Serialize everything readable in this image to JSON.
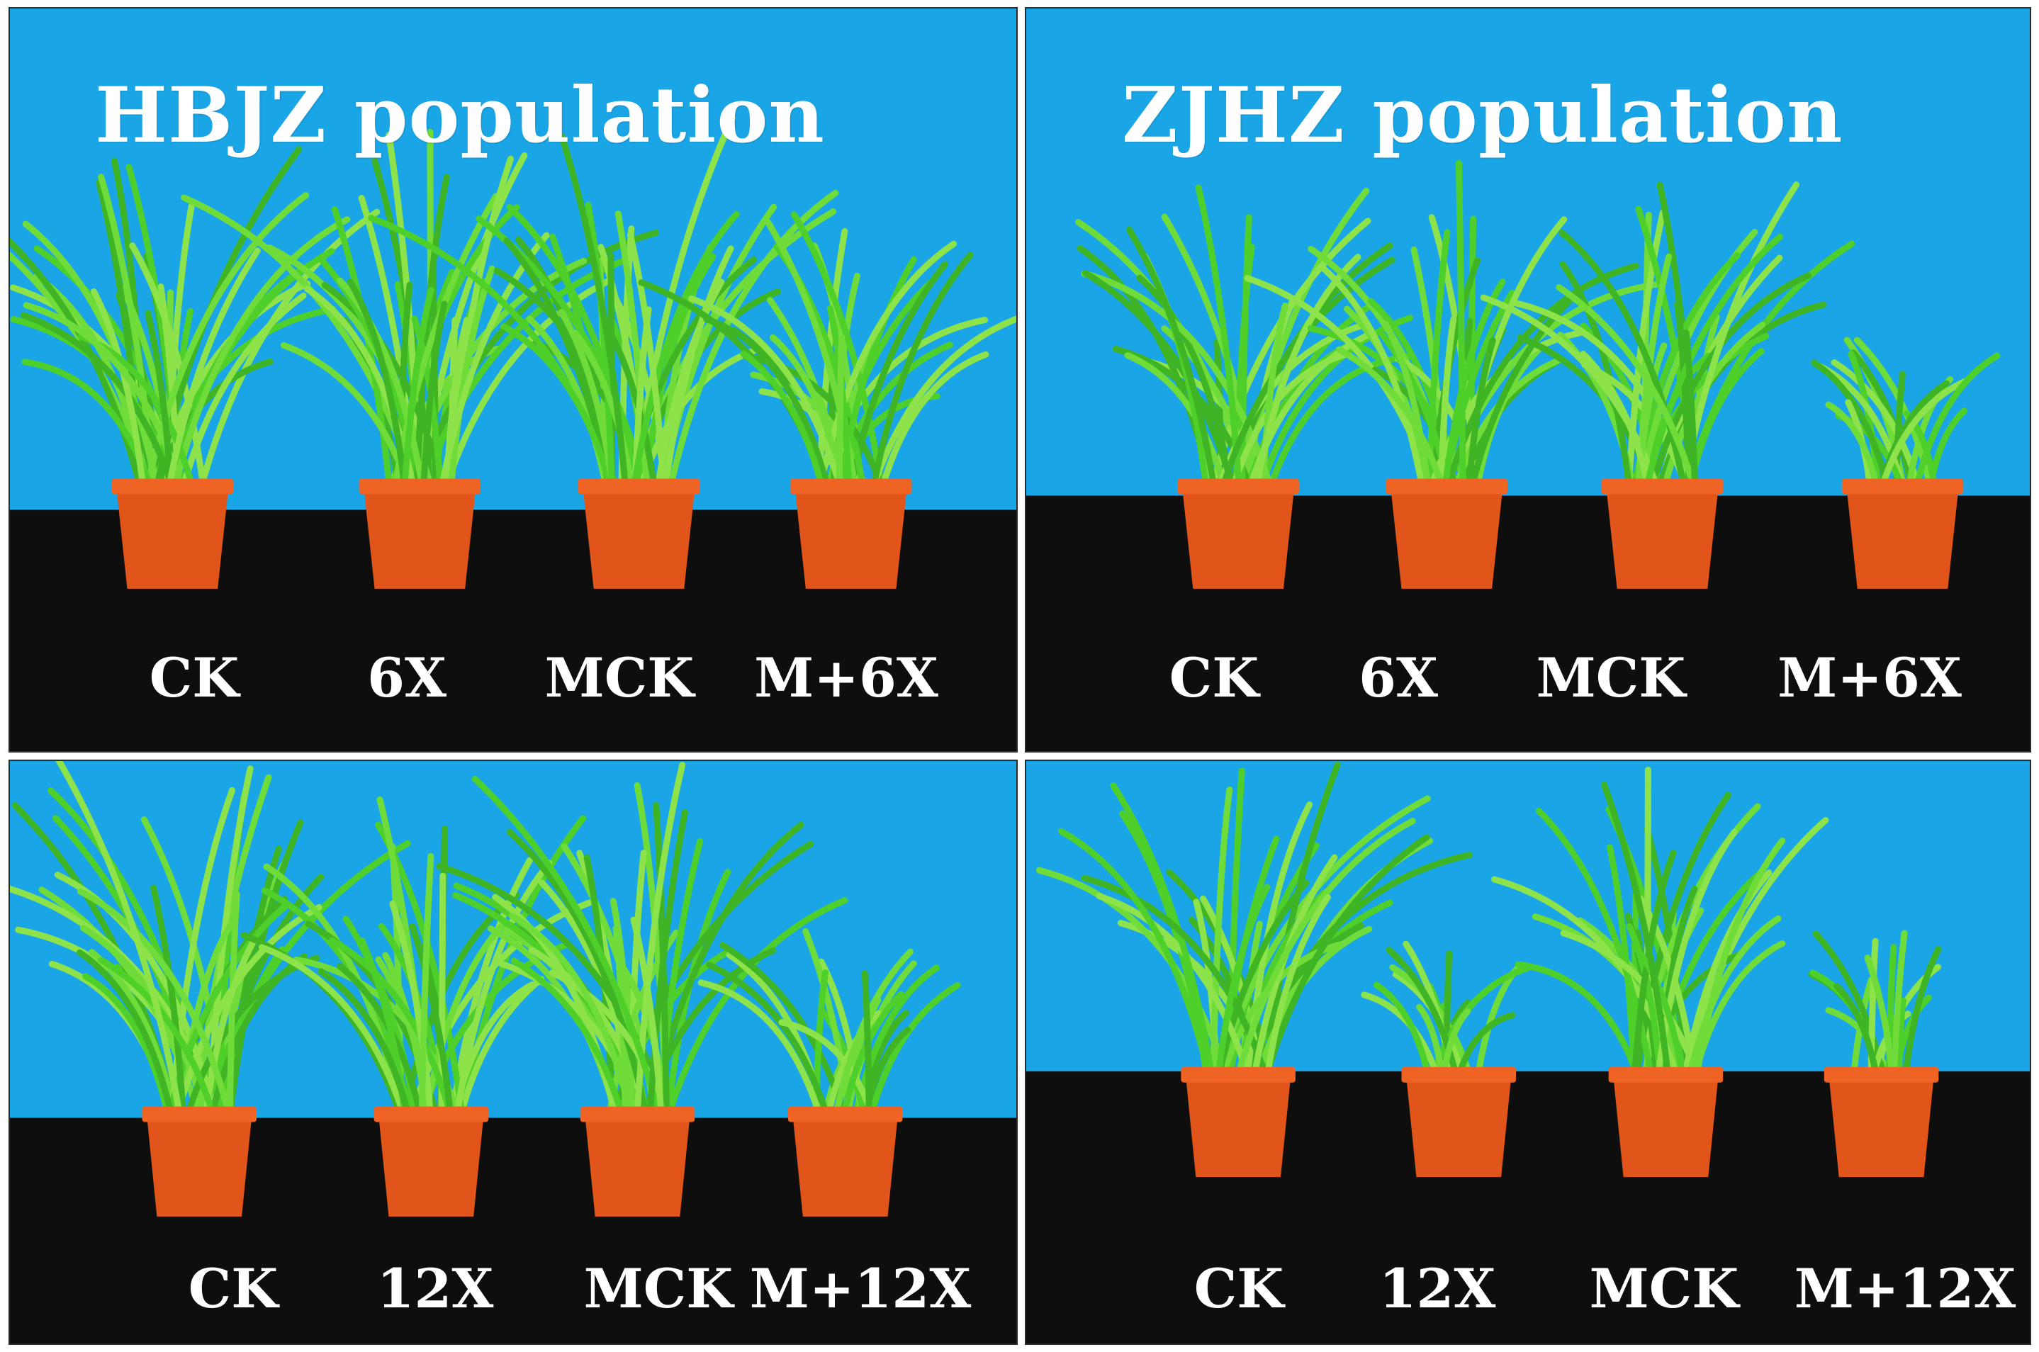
{
  "figure": {
    "panels": [
      {
        "title": "HBJZ population",
        "labels": [
          "CK",
          "6X",
          "MCK",
          "M+6X"
        ],
        "plant_vigor": [
          1.0,
          1.0,
          1.0,
          0.75
        ]
      },
      {
        "title": "ZJHZ population",
        "labels": [
          "CK",
          "6X",
          "MCK",
          "M+6X"
        ],
        "plant_vigor": [
          0.85,
          0.8,
          0.8,
          0.25
        ]
      },
      {
        "title": "",
        "labels": [
          "CK",
          "12X",
          "MCK",
          "M+12X"
        ],
        "plant_vigor": [
          1.0,
          0.85,
          1.0,
          0.4
        ]
      },
      {
        "title": "",
        "labels": [
          "CK",
          "12X",
          "MCK",
          "M+12X"
        ],
        "plant_vigor": [
          0.9,
          0.2,
          0.8,
          0.2
        ]
      }
    ],
    "colors": {
      "backdrop_blue": "#1aa6e6",
      "table_black": "#0e0e0e",
      "pot_orange": "#e2551a",
      "leaf_green": "#4fcf2a"
    }
  }
}
